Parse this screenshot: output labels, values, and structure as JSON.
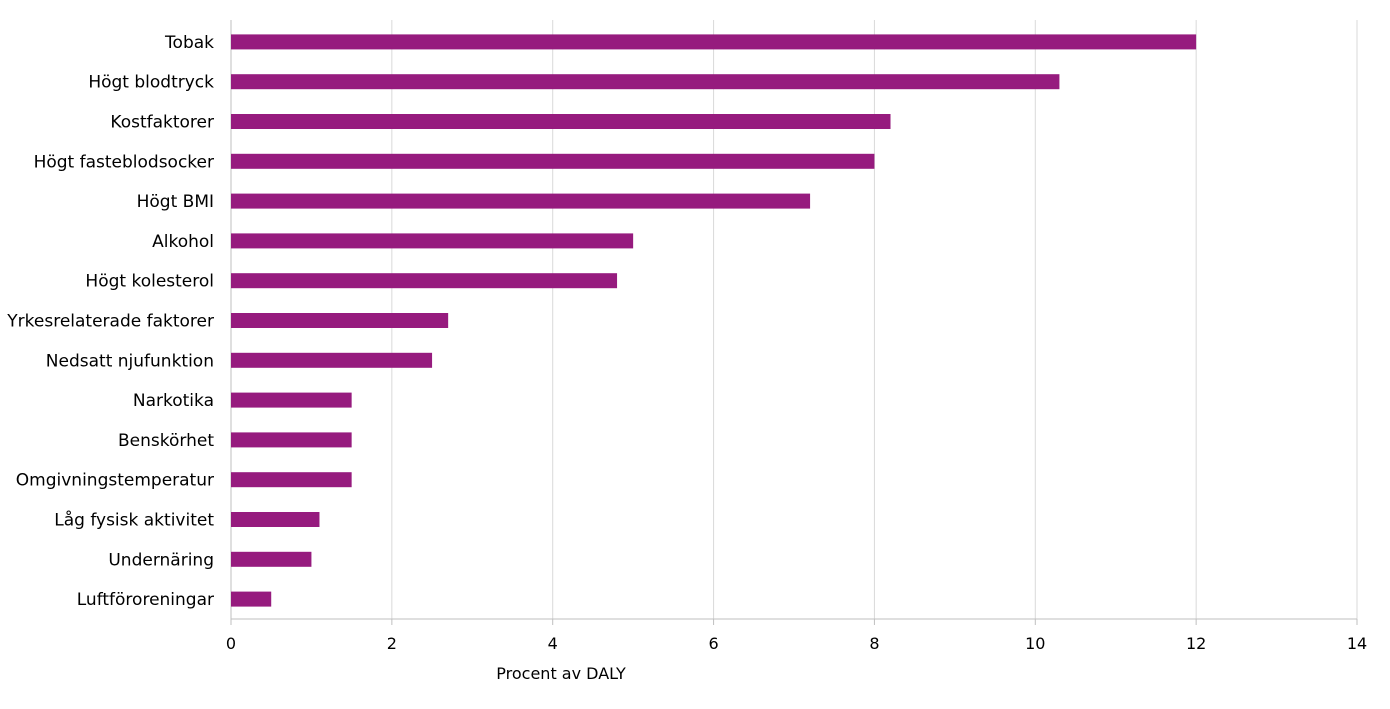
{
  "chart_data": {
    "type": "bar",
    "orientation": "horizontal",
    "categories": [
      "Tobak",
      "Högt blodtryck",
      "Kostfaktorer",
      "Högt fasteblodsocker",
      "Högt BMI",
      "Alkohol",
      "Högt kolesterol",
      "Yrkesrelaterade faktorer",
      "Nedsatt njufunktion",
      "Narkotika",
      "Benskörhet",
      "Omgivningstemperatur",
      "Låg fysisk aktivitet",
      "Undernäring",
      "Luftföroreningar"
    ],
    "values": [
      12.0,
      10.3,
      8.2,
      8.0,
      7.2,
      5.0,
      4.8,
      2.7,
      2.5,
      1.5,
      1.5,
      1.5,
      1.1,
      1.0,
      0.5
    ],
    "title": "",
    "xlabel": "Procent av DALY",
    "ylabel": "",
    "xlim": [
      0,
      14
    ],
    "xticks": [
      "0",
      "2",
      "4",
      "6",
      "8",
      "10",
      "12",
      "14"
    ],
    "grid": true,
    "legend": "none",
    "bar_color": "#961b7e"
  }
}
